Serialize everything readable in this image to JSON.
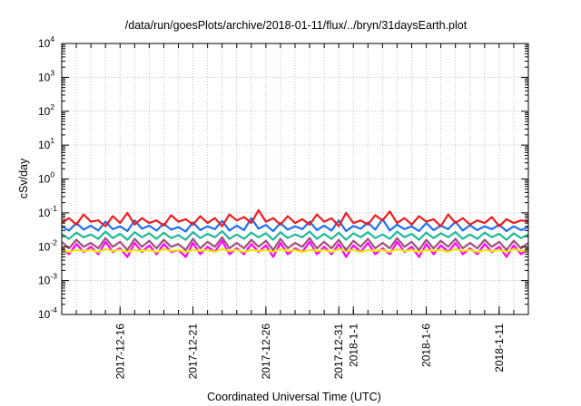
{
  "chart_data": {
    "type": "line",
    "title": "/data/run/goesPlots/archive/2018-01-11/flux/../bryn/31daysEarth.plot",
    "xlabel": "Coordinated Universal Time (UTC)",
    "ylabel": "cSv/day",
    "yscale": "log",
    "ylim": [
      0.0001,
      10000
    ],
    "yticks": [
      {
        "base": "10",
        "exp": "4",
        "value": 10000
      },
      {
        "base": "10",
        "exp": "3",
        "value": 1000
      },
      {
        "base": "10",
        "exp": "2",
        "value": 100
      },
      {
        "base": "10",
        "exp": "1",
        "value": 10
      },
      {
        "base": "10",
        "exp": "0",
        "value": 1
      },
      {
        "base": "10",
        "exp": "-1",
        "value": 0.1
      },
      {
        "base": "10",
        "exp": "-2",
        "value": 0.01
      },
      {
        "base": "10",
        "exp": "-3",
        "value": 0.001
      },
      {
        "base": "10",
        "exp": "-4",
        "value": 0.0001
      }
    ],
    "x_unit": "days since 2017-12-12 00:00 UTC",
    "xlim": [
      0,
      32
    ],
    "x_step_days": 0.5,
    "xticks": [
      {
        "label": "2017-12-16",
        "day": 4
      },
      {
        "label": "2017-12-21",
        "day": 9
      },
      {
        "label": "2017-12-26",
        "day": 14
      },
      {
        "label": "2017-12-31",
        "day": 19
      },
      {
        "label": "2018-1-1",
        "day": 20
      },
      {
        "label": "2018-1-6",
        "day": 25
      },
      {
        "label": "2018-1-11",
        "day": 30
      }
    ],
    "grid": true,
    "series": [
      {
        "name": "magenta",
        "color": "#ff00ff",
        "values": [
          0.009,
          0.006,
          0.012,
          0.007,
          0.01,
          0.006,
          0.014,
          0.007,
          0.009,
          0.005,
          0.013,
          0.007,
          0.011,
          0.006,
          0.012,
          0.007,
          0.008,
          0.005,
          0.013,
          0.006,
          0.01,
          0.007,
          0.015,
          0.006,
          0.009,
          0.006,
          0.012,
          0.007,
          0.011,
          0.005,
          0.013,
          0.006,
          0.009,
          0.007,
          0.014,
          0.006,
          0.01,
          0.006,
          0.012,
          0.005,
          0.011,
          0.007,
          0.013,
          0.006,
          0.009,
          0.006,
          0.014,
          0.007,
          0.01,
          0.005,
          0.012,
          0.006,
          0.011,
          0.007,
          0.013,
          0.006,
          0.009,
          0.006,
          0.012,
          0.007,
          0.01,
          0.005,
          0.011,
          0.006,
          0.009
        ]
      },
      {
        "name": "yellow",
        "color": "#e8e800",
        "values": [
          0.008,
          0.007,
          0.008,
          0.0075,
          0.008,
          0.007,
          0.0085,
          0.0075,
          0.008,
          0.007,
          0.008,
          0.0075,
          0.008,
          0.007,
          0.0085,
          0.0075,
          0.008,
          0.007,
          0.008,
          0.0075,
          0.008,
          0.007,
          0.0085,
          0.0075,
          0.008,
          0.007,
          0.008,
          0.0075,
          0.008,
          0.007,
          0.0085,
          0.0075,
          0.008,
          0.007,
          0.008,
          0.0075,
          0.008,
          0.007,
          0.0085,
          0.0075,
          0.008,
          0.007,
          0.008,
          0.0075,
          0.008,
          0.007,
          0.0085,
          0.0075,
          0.008,
          0.007,
          0.008,
          0.0075,
          0.008,
          0.007,
          0.0085,
          0.0075,
          0.008,
          0.007,
          0.008,
          0.0075,
          0.008,
          0.007,
          0.0085,
          0.0075,
          0.008
        ]
      },
      {
        "name": "mauve",
        "color": "#a0507a",
        "values": [
          0.014,
          0.009,
          0.016,
          0.01,
          0.013,
          0.009,
          0.018,
          0.01,
          0.014,
          0.008,
          0.017,
          0.01,
          0.015,
          0.009,
          0.016,
          0.01,
          0.012,
          0.008,
          0.017,
          0.009,
          0.014,
          0.01,
          0.019,
          0.009,
          0.013,
          0.009,
          0.016,
          0.01,
          0.015,
          0.008,
          0.017,
          0.009,
          0.013,
          0.01,
          0.018,
          0.009,
          0.014,
          0.009,
          0.016,
          0.008,
          0.015,
          0.01,
          0.017,
          0.009,
          0.013,
          0.009,
          0.018,
          0.01,
          0.014,
          0.008,
          0.016,
          0.009,
          0.015,
          0.01,
          0.017,
          0.009,
          0.013,
          0.009,
          0.016,
          0.01,
          0.014,
          0.008,
          0.015,
          0.009,
          0.013
        ]
      },
      {
        "name": "teal",
        "color": "#20b89a",
        "values": [
          0.024,
          0.017,
          0.026,
          0.019,
          0.023,
          0.017,
          0.028,
          0.018,
          0.024,
          0.016,
          0.027,
          0.019,
          0.025,
          0.017,
          0.026,
          0.018,
          0.022,
          0.016,
          0.027,
          0.018,
          0.024,
          0.019,
          0.029,
          0.017,
          0.023,
          0.017,
          0.026,
          0.019,
          0.025,
          0.016,
          0.027,
          0.018,
          0.023,
          0.019,
          0.028,
          0.017,
          0.024,
          0.017,
          0.026,
          0.016,
          0.025,
          0.019,
          0.027,
          0.018,
          0.023,
          0.017,
          0.028,
          0.019,
          0.024,
          0.016,
          0.026,
          0.018,
          0.025,
          0.019,
          0.027,
          0.017,
          0.023,
          0.017,
          0.026,
          0.019,
          0.024,
          0.016,
          0.025,
          0.018,
          0.023
        ]
      },
      {
        "name": "blue",
        "color": "#1e6ef0",
        "values": [
          0.04,
          0.03,
          0.05,
          0.032,
          0.042,
          0.03,
          0.055,
          0.033,
          0.04,
          0.029,
          0.06,
          0.034,
          0.042,
          0.03,
          0.048,
          0.032,
          0.038,
          0.028,
          0.052,
          0.031,
          0.04,
          0.033,
          0.058,
          0.03,
          0.042,
          0.031,
          0.07,
          0.034,
          0.044,
          0.029,
          0.05,
          0.032,
          0.04,
          0.033,
          0.055,
          0.031,
          0.042,
          0.03,
          0.06,
          0.029,
          0.041,
          0.034,
          0.052,
          0.032,
          0.065,
          0.03,
          0.045,
          0.033,
          0.04,
          0.029,
          0.05,
          0.031,
          0.042,
          0.033,
          0.055,
          0.03,
          0.043,
          0.031,
          0.04,
          0.033,
          0.045,
          0.029,
          0.04,
          0.031,
          0.038
        ]
      },
      {
        "name": "red",
        "color": "#ee1c1c",
        "values": [
          0.05,
          0.07,
          0.045,
          0.09,
          0.055,
          0.06,
          0.04,
          0.08,
          0.05,
          0.1,
          0.045,
          0.07,
          0.05,
          0.06,
          0.042,
          0.085,
          0.055,
          0.065,
          0.045,
          0.08,
          0.05,
          0.07,
          0.04,
          0.09,
          0.06,
          0.075,
          0.05,
          0.12,
          0.055,
          0.07,
          0.045,
          0.08,
          0.05,
          0.065,
          0.045,
          0.09,
          0.055,
          0.07,
          0.04,
          0.1,
          0.05,
          0.06,
          0.045,
          0.085,
          0.06,
          0.11,
          0.05,
          0.07,
          0.045,
          0.08,
          0.055,
          0.065,
          0.04,
          0.09,
          0.05,
          0.07,
          0.045,
          0.06,
          0.05,
          0.075,
          0.04,
          0.065,
          0.05,
          0.06,
          0.055
        ]
      }
    ]
  }
}
